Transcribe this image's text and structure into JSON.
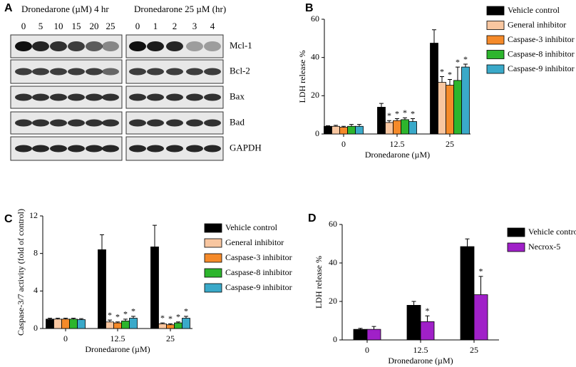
{
  "blot": {
    "panel": "A",
    "left_title": "Dronedarone (µM) 4 hr",
    "right_title": "Dronedarone 25 µM (hr)",
    "left_lanes": [
      "0",
      "5",
      "10",
      "15",
      "20",
      "25"
    ],
    "right_lanes": [
      "0",
      "1",
      "2",
      "3",
      "4"
    ],
    "proteins": [
      "Mcl-1",
      "Bcl-2",
      "Bax",
      "Bad",
      "GAPDH"
    ]
  },
  "chart_data": [
    {
      "type": "bar",
      "panel": "B",
      "y_label": "LDH release %",
      "x_label": "Dronedarone (µM)",
      "categories": [
        "0",
        "12.5",
        "25"
      ],
      "ylim": [
        0,
        60
      ],
      "yticks": [
        0,
        20,
        40,
        60
      ],
      "grid": false,
      "legend": "outside-right",
      "series": [
        {
          "name": "Vehicle control",
          "color": "#000000",
          "values": [
            4,
            14,
            47.5
          ],
          "errors": [
            0.3,
            2,
            7
          ],
          "significance": [
            null,
            null,
            null
          ]
        },
        {
          "name": "General inhibitor",
          "color": "#f8c6a0",
          "values": [
            4,
            6,
            27
          ],
          "errors": [
            0.5,
            1,
            3
          ],
          "significance": [
            null,
            "*",
            "*"
          ]
        },
        {
          "name": "Caspase-3 inhibitor",
          "color": "#f58a2a",
          "values": [
            3.5,
            7,
            25.5
          ],
          "errors": [
            0.5,
            1,
            3
          ],
          "significance": [
            null,
            "*",
            "*"
          ]
        },
        {
          "name": "Caspase-8 inhibitor",
          "color": "#2db52d",
          "values": [
            4,
            7.5,
            28
          ],
          "errors": [
            1,
            1,
            7
          ],
          "significance": [
            null,
            "*",
            "*"
          ]
        },
        {
          "name": "Caspase-9 inhibitor",
          "color": "#3aa9c9",
          "values": [
            4,
            6.5,
            35
          ],
          "errors": [
            1,
            1.5,
            1.5
          ],
          "significance": [
            null,
            "*",
            "*"
          ]
        }
      ]
    },
    {
      "type": "bar",
      "panel": "C",
      "y_label": "Caspase-3/7 activity (fold of control)",
      "x_label": "Dronedarone (µM)",
      "categories": [
        "0",
        "12.5",
        "25"
      ],
      "ylim": [
        0,
        12
      ],
      "yticks": [
        0,
        4,
        8,
        12
      ],
      "grid": false,
      "legend": "outside-right",
      "series": [
        {
          "name": "Vehicle control",
          "color": "#000000",
          "values": [
            1,
            8.4,
            8.7
          ],
          "errors": [
            0.1,
            1.6,
            2.3
          ],
          "significance": [
            null,
            null,
            null
          ]
        },
        {
          "name": "General inhibitor",
          "color": "#f8c6a0",
          "values": [
            1,
            0.7,
            0.5
          ],
          "errors": [
            0.1,
            0.2,
            0.1
          ],
          "significance": [
            null,
            "*",
            "*"
          ]
        },
        {
          "name": "Caspase-3 inhibitor",
          "color": "#f58a2a",
          "values": [
            1,
            0.6,
            0.4
          ],
          "errors": [
            0.1,
            0.1,
            0.1
          ],
          "significance": [
            null,
            "*",
            "*"
          ]
        },
        {
          "name": "Caspase-8 inhibitor",
          "color": "#2db52d",
          "values": [
            1,
            0.8,
            0.6
          ],
          "errors": [
            0.1,
            0.2,
            0.1
          ],
          "significance": [
            null,
            "*",
            "*"
          ]
        },
        {
          "name": "Caspase-9 inhibitor",
          "color": "#3aa9c9",
          "values": [
            0.95,
            1.1,
            1.1
          ],
          "errors": [
            0.1,
            0.2,
            0.2
          ],
          "significance": [
            null,
            "*",
            "*"
          ]
        }
      ]
    },
    {
      "type": "bar",
      "panel": "D",
      "y_label": "LDH release %",
      "x_label": "Dronedarone (µM)",
      "categories": [
        "0",
        "12.5",
        "25"
      ],
      "ylim": [
        0,
        60
      ],
      "yticks": [
        0,
        20,
        40,
        60
      ],
      "grid": false,
      "legend": "outside-right",
      "series": [
        {
          "name": "Vehicle control",
          "color": "#000000",
          "values": [
            5.5,
            18,
            48.5
          ],
          "errors": [
            0.5,
            2,
            4
          ],
          "significance": [
            null,
            null,
            null
          ]
        },
        {
          "name": "Necrox-5",
          "color": "#a020c8",
          "values": [
            5.5,
            9.5,
            23.5
          ],
          "errors": [
            1.5,
            3,
            9.5
          ],
          "significance": [
            null,
            "*",
            "*"
          ]
        }
      ]
    }
  ]
}
